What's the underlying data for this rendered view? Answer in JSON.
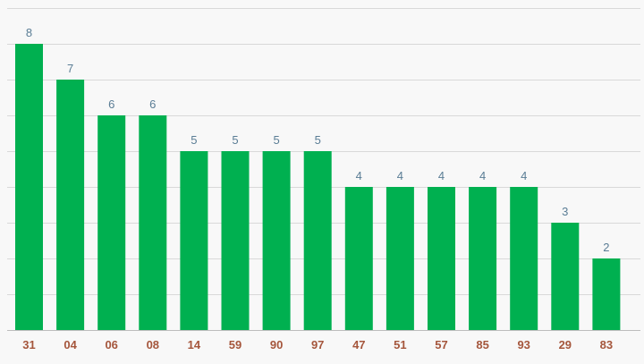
{
  "chart_data": {
    "type": "bar",
    "categories": [
      "31",
      "04",
      "06",
      "08",
      "14",
      "59",
      "90",
      "97",
      "47",
      "51",
      "57",
      "85",
      "93",
      "29",
      "83"
    ],
    "values": [
      8,
      7,
      6,
      6,
      5,
      5,
      5,
      5,
      4,
      4,
      4,
      4,
      4,
      3,
      2
    ],
    "ylim": [
      0,
      9
    ],
    "grid": true,
    "legend": "none",
    "title": "",
    "xlabel": "",
    "ylabel": ""
  },
  "colors": {
    "bar": "#00b050",
    "value_label": "#5a7d95",
    "tick_label": "#a5563c",
    "grid": "#d9d9d9",
    "background": "#f8f8f8"
  }
}
